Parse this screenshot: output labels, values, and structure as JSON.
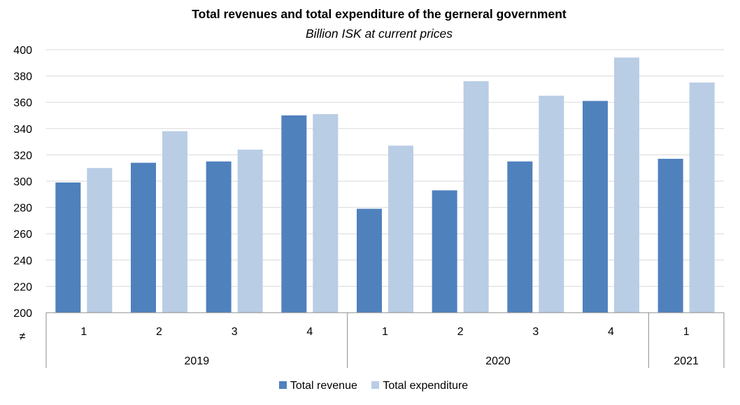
{
  "chart_data": {
    "type": "bar",
    "title": "Total revenues and total expenditure of the gerneral government",
    "subtitle": "Billion ISK at current prices",
    "xlabel": "",
    "ylabel": "",
    "ylim": [
      200,
      400
    ],
    "yticks": [
      "200",
      "220",
      "240",
      "260",
      "280",
      "300",
      "320",
      "340",
      "360",
      "380",
      "400"
    ],
    "categories": [
      "1",
      "2",
      "3",
      "4",
      "1",
      "2",
      "3",
      "4",
      "1"
    ],
    "groups": [
      {
        "label": "2019",
        "count": 4
      },
      {
        "label": "2020",
        "count": 4
      },
      {
        "label": "2021",
        "count": 1
      }
    ],
    "axis_break_symbol": "≠",
    "grid": true,
    "legend_position": "bottom",
    "series": [
      {
        "name": "Total revenue",
        "color": "#4f81bd",
        "values": [
          299,
          314,
          315,
          350,
          279,
          293,
          315,
          361,
          317
        ]
      },
      {
        "name": "Total expenditure",
        "color": "#b9cde5",
        "values": [
          310,
          338,
          324,
          351,
          327,
          376,
          365,
          394,
          375
        ]
      }
    ]
  }
}
